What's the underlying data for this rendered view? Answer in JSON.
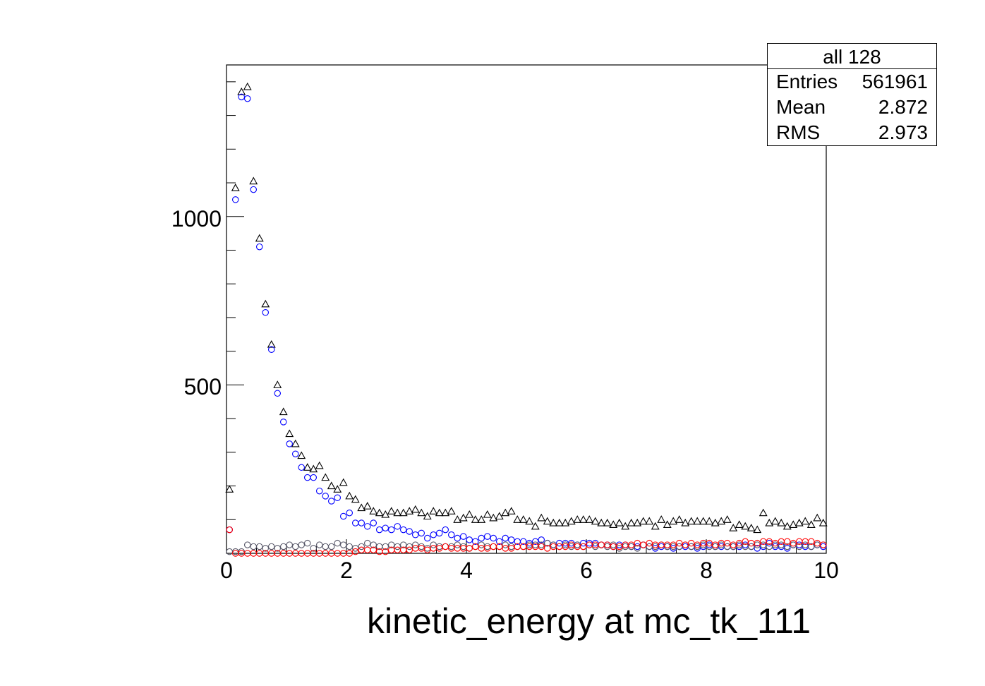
{
  "stats": {
    "title": "all 128",
    "rows": [
      {
        "label": "Entries",
        "value": "561961"
      },
      {
        "label": "Mean",
        "value": "2.872"
      },
      {
        "label": "RMS",
        "value": "2.973"
      }
    ]
  },
  "chart_data": {
    "type": "scatter",
    "xlabel": "kinetic_energy at mc_tk_111",
    "ylabel": "",
    "xlim": [
      0,
      10
    ],
    "ylim": [
      0,
      1450
    ],
    "x_ticks": [
      "0",
      "2",
      "4",
      "6",
      "8",
      "10"
    ],
    "y_ticks": [
      "500",
      "1000"
    ],
    "series": [
      {
        "marker": "triangle",
        "color": "#000000",
        "x": [
          0.05,
          0.15,
          0.25,
          0.35,
          0.45,
          0.55,
          0.65,
          0.75,
          0.85,
          0.95,
          1.05,
          1.15,
          1.25,
          1.35,
          1.45,
          1.55,
          1.65,
          1.75,
          1.85,
          1.95,
          2.05,
          2.15,
          2.25,
          2.35,
          2.45,
          2.55,
          2.65,
          2.75,
          2.85,
          2.95,
          3.05,
          3.15,
          3.25,
          3.35,
          3.45,
          3.55,
          3.65,
          3.75,
          3.85,
          3.95,
          4.05,
          4.15,
          4.25,
          4.35,
          4.45,
          4.55,
          4.65,
          4.75,
          4.85,
          4.95,
          5.05,
          5.15,
          5.25,
          5.35,
          5.45,
          5.55,
          5.65,
          5.75,
          5.85,
          5.95,
          6.05,
          6.15,
          6.25,
          6.35,
          6.45,
          6.55,
          6.65,
          6.75,
          6.85,
          6.95,
          7.05,
          7.15,
          7.25,
          7.35,
          7.45,
          7.55,
          7.65,
          7.75,
          7.85,
          7.95,
          8.05,
          8.15,
          8.25,
          8.35,
          8.45,
          8.55,
          8.65,
          8.75,
          8.85,
          8.95,
          9.05,
          9.15,
          9.25,
          9.35,
          9.45,
          9.55,
          9.65,
          9.75,
          9.85,
          9.95
        ],
        "y": [
          190,
          1085,
          1370,
          1385,
          1105,
          935,
          740,
          620,
          500,
          420,
          355,
          325,
          290,
          255,
          250,
          260,
          225,
          200,
          190,
          210,
          170,
          160,
          135,
          140,
          125,
          120,
          115,
          125,
          120,
          120,
          125,
          130,
          120,
          110,
          125,
          120,
          120,
          125,
          100,
          105,
          115,
          100,
          100,
          115,
          105,
          110,
          120,
          125,
          100,
          100,
          95,
          80,
          105,
          95,
          90,
          90,
          90,
          95,
          100,
          100,
          100,
          95,
          90,
          90,
          85,
          90,
          80,
          90,
          90,
          95,
          95,
          80,
          100,
          85,
          95,
          100,
          90,
          95,
          95,
          95,
          95,
          90,
          95,
          100,
          75,
          85,
          80,
          75,
          70,
          120,
          90,
          95,
          90,
          80,
          85,
          90,
          95,
          85,
          105,
          90
        ]
      },
      {
        "marker": "circle",
        "color": "#0000ff",
        "x": [
          0.05,
          0.15,
          0.25,
          0.35,
          0.45,
          0.55,
          0.65,
          0.75,
          0.85,
          0.95,
          1.05,
          1.15,
          1.25,
          1.35,
          1.45,
          1.55,
          1.65,
          1.75,
          1.85,
          1.95,
          2.05,
          2.15,
          2.25,
          2.35,
          2.45,
          2.55,
          2.65,
          2.75,
          2.85,
          2.95,
          3.05,
          3.15,
          3.25,
          3.35,
          3.45,
          3.55,
          3.65,
          3.75,
          3.85,
          3.95,
          4.05,
          4.15,
          4.25,
          4.35,
          4.45,
          4.55,
          4.65,
          4.75,
          4.85,
          4.95,
          5.05,
          5.15,
          5.25,
          5.35,
          5.45,
          5.55,
          5.65,
          5.75,
          5.85,
          5.95,
          6.05,
          6.15,
          6.25,
          6.35,
          6.45,
          6.55,
          6.65,
          6.75,
          6.85,
          6.95,
          7.05,
          7.15,
          7.25,
          7.35,
          7.45,
          7.55,
          7.65,
          7.75,
          7.85,
          7.95,
          8.05,
          8.15,
          8.25,
          8.35,
          8.45,
          8.55,
          8.65,
          8.75,
          8.85,
          8.95,
          9.05,
          9.15,
          9.25,
          9.35,
          9.45,
          9.55,
          9.65,
          9.75,
          9.85,
          9.95
        ],
        "y": [
          70,
          1050,
          1355,
          1350,
          1080,
          910,
          715,
          605,
          475,
          390,
          325,
          295,
          255,
          225,
          225,
          185,
          170,
          155,
          165,
          110,
          120,
          90,
          90,
          80,
          90,
          70,
          75,
          70,
          80,
          70,
          65,
          55,
          60,
          45,
          55,
          60,
          70,
          55,
          45,
          50,
          40,
          35,
          45,
          50,
          45,
          35,
          45,
          40,
          35,
          35,
          30,
          35,
          40,
          30,
          25,
          30,
          30,
          30,
          25,
          30,
          30,
          30,
          25,
          25,
          20,
          25,
          25,
          20,
          20,
          25,
          20,
          15,
          20,
          20,
          15,
          20,
          20,
          20,
          15,
          20,
          25,
          20,
          20,
          20,
          20,
          20,
          25,
          20,
          15,
          20,
          30,
          20,
          20,
          15,
          25,
          25,
          20,
          20,
          25,
          20
        ]
      },
      {
        "marker": "circle",
        "color": "#555566",
        "x": [
          0.05,
          0.15,
          0.25,
          0.35,
          0.45,
          0.55,
          0.65,
          0.75,
          0.85,
          0.95,
          1.05,
          1.15,
          1.25,
          1.35,
          1.45,
          1.55,
          1.65,
          1.75,
          1.85,
          1.95,
          2.05,
          2.15,
          2.25,
          2.35,
          2.45,
          2.55,
          2.65,
          2.75,
          2.85,
          2.95,
          3.05,
          3.15,
          3.25,
          3.35,
          3.45,
          3.55,
          3.65,
          3.75,
          3.85,
          3.95,
          4.05,
          4.15,
          4.25,
          4.35,
          4.45,
          4.55,
          4.65,
          4.75,
          4.85,
          4.95,
          5.05,
          5.15,
          5.25,
          5.35,
          5.45,
          5.55,
          5.65,
          5.75,
          5.85,
          5.95,
          6.05,
          6.15,
          6.25,
          6.35,
          6.45,
          6.55,
          6.65,
          6.75,
          6.85,
          6.95,
          7.05,
          7.15,
          7.25,
          7.35,
          7.45,
          7.55,
          7.65,
          7.75,
          7.85,
          7.95,
          8.05,
          8.15,
          8.25,
          8.35,
          8.45,
          8.55,
          8.65,
          8.75,
          8.85,
          8.95,
          9.05,
          9.15,
          9.25,
          9.35,
          9.45,
          9.55,
          9.65,
          9.75,
          9.85,
          9.95
        ],
        "y": [
          5,
          5,
          5,
          25,
          20,
          20,
          15,
          20,
          15,
          20,
          25,
          20,
          25,
          30,
          15,
          25,
          20,
          20,
          30,
          25,
          20,
          15,
          20,
          30,
          25,
          20,
          20,
          25,
          20,
          25,
          20,
          25,
          20,
          15,
          25,
          20,
          20,
          20,
          25,
          20,
          15,
          20,
          25,
          20,
          20,
          20,
          25,
          20,
          20,
          20,
          25,
          25,
          25,
          30,
          25,
          20,
          25,
          20,
          25,
          20,
          25,
          20,
          25,
          20,
          25,
          15,
          20,
          20,
          15,
          25,
          20,
          20,
          25,
          20,
          20,
          20,
          25,
          20,
          20,
          25,
          20,
          20,
          25,
          20,
          20,
          25,
          20,
          20,
          25,
          25,
          20,
          25,
          25,
          20,
          25,
          20,
          25,
          20,
          25,
          25
        ]
      },
      {
        "marker": "circle",
        "color": "#ff0000",
        "x": [
          0.05,
          0.15,
          0.25,
          0.35,
          0.45,
          0.55,
          0.65,
          0.75,
          0.85,
          0.95,
          1.05,
          1.15,
          1.25,
          1.35,
          1.45,
          1.55,
          1.65,
          1.75,
          1.85,
          1.95,
          2.05,
          2.15,
          2.25,
          2.35,
          2.45,
          2.55,
          2.65,
          2.75,
          2.85,
          2.95,
          3.05,
          3.15,
          3.25,
          3.35,
          3.45,
          3.55,
          3.65,
          3.75,
          3.85,
          3.95,
          4.05,
          4.15,
          4.25,
          4.35,
          4.45,
          4.55,
          4.65,
          4.75,
          4.85,
          4.95,
          5.05,
          5.15,
          5.25,
          5.35,
          5.45,
          5.55,
          5.65,
          5.75,
          5.85,
          5.95,
          6.05,
          6.15,
          6.25,
          6.35,
          6.45,
          6.55,
          6.65,
          6.75,
          6.85,
          6.95,
          7.05,
          7.15,
          7.25,
          7.35,
          7.45,
          7.55,
          7.65,
          7.75,
          7.85,
          7.95,
          8.05,
          8.15,
          8.25,
          8.35,
          8.45,
          8.55,
          8.65,
          8.75,
          8.85,
          8.95,
          9.05,
          9.15,
          9.25,
          9.35,
          9.45,
          9.55,
          9.65,
          9.75,
          9.85,
          9.95
        ],
        "y": [
          70,
          0,
          0,
          0,
          0,
          0,
          0,
          0,
          0,
          0,
          0,
          0,
          0,
          0,
          0,
          0,
          0,
          0,
          0,
          0,
          0,
          5,
          10,
          10,
          10,
          5,
          5,
          10,
          10,
          10,
          10,
          15,
          15,
          10,
          15,
          15,
          20,
          15,
          15,
          15,
          15,
          20,
          15,
          15,
          20,
          20,
          15,
          15,
          20,
          20,
          20,
          20,
          20,
          15,
          20,
          20,
          20,
          25,
          20,
          20,
          25,
          25,
          25,
          25,
          20,
          20,
          25,
          25,
          30,
          25,
          30,
          25,
          25,
          25,
          25,
          30,
          25,
          30,
          25,
          30,
          30,
          25,
          30,
          30,
          25,
          30,
          35,
          30,
          30,
          35,
          35,
          30,
          35,
          35,
          30,
          35,
          35,
          35,
          30,
          25
        ]
      }
    ]
  }
}
